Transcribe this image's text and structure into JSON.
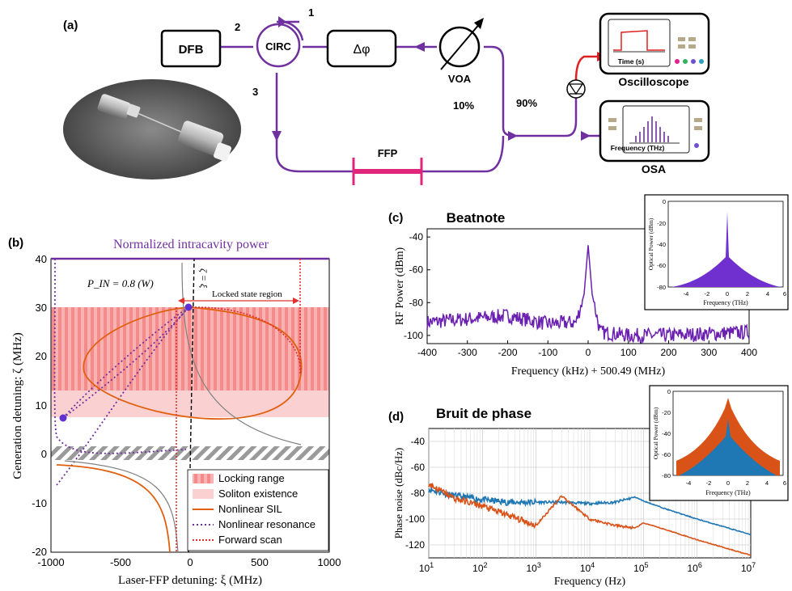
{
  "panel_a": {
    "label": "(a)",
    "blocks": {
      "dfb": "DFB",
      "circ": "CIRC",
      "phase": "Δφ",
      "voa": "VOA",
      "ffp": "FFP",
      "oscilloscope": "Oscilloscope",
      "osa": "OSA"
    },
    "ports": {
      "p1": "1",
      "p2": "2",
      "p3": "3"
    },
    "splits": {
      "low": "10%",
      "high": "90%"
    },
    "scope_axis": "Time (s)",
    "osa_axis": "Frequency (THz)",
    "colors": {
      "loop": "#7030A0",
      "ffp": "#E0267A",
      "rf": "#E02020"
    }
  },
  "panel_b": {
    "label": "(b)",
    "title": "Normalized intracavity power",
    "xlabel": "Laser-FFP detuning: ξ (MHz)",
    "ylabel": "Generation detuning: ζ (MHz)",
    "pin_label": "P_IN = 0.8 (W)",
    "zeta_label": "ζ = ξ",
    "region_label": "Locked state region",
    "xticks": [
      "-1000",
      "-500",
      "0",
      "500",
      "1000"
    ],
    "yticks": [
      "40",
      "30",
      "20",
      "10",
      "0",
      "-10",
      "-20"
    ],
    "legend": [
      "Locking range",
      "Soliton existence",
      "Nonlinear SIL",
      "Nonlinear resonance",
      "Forward scan"
    ]
  },
  "panel_c": {
    "label": "(c)",
    "title": "Beatnote",
    "xlabel": "Frequency (kHz) + 500.49 (MHz)",
    "ylabel": "RF Power (dBm)",
    "xticks": [
      "-400",
      "-300",
      "-200",
      "-100",
      "0",
      "100",
      "200",
      "300",
      "400"
    ],
    "yticks": [
      "-40",
      "-60",
      "-80",
      "-100"
    ],
    "inset": {
      "xlabel": "Frequency (THz)",
      "ylabel": "Optical Power (dBm)",
      "xticks": [
        "-4",
        "-2",
        "0",
        "2",
        "4",
        "6"
      ],
      "yticks": [
        "0",
        "-20",
        "-40",
        "-60",
        "-80"
      ]
    }
  },
  "panel_d": {
    "label": "(d)",
    "title": "Bruit de phase",
    "xlabel": "Frequency (Hz)",
    "ylabel": "Phase noise (dBc/Hz)",
    "xticks": [
      "1",
      "2",
      "3",
      "4",
      "5",
      "6",
      "7"
    ],
    "xbase": "10",
    "yticks": [
      "-40",
      "-60",
      "-80",
      "-100",
      "-120"
    ],
    "inset": {
      "xlabel": "Frequency (THz)",
      "ylabel": "Optical Power (dBm)",
      "xticks": [
        "-4",
        "-2",
        "0",
        "2",
        "4",
        "6"
      ],
      "yticks": [
        "0",
        "-20",
        "-40",
        "-60",
        "-80"
      ]
    },
    "colors": {
      "blue": "#1F77B4",
      "orange": "#D95319"
    }
  },
  "chart_data": [
    {
      "type": "line",
      "title": "Beatnote",
      "xlabel": "Frequency (kHz) + 500.49 (MHz)",
      "ylabel": "RF Power (dBm)",
      "xlim": [
        -400,
        400
      ],
      "ylim": [
        -105,
        -35
      ],
      "x": [
        -400,
        -300,
        -200,
        -100,
        -30,
        -10,
        0,
        10,
        30,
        100,
        200,
        300,
        400
      ],
      "values": [
        -92,
        -90,
        -88,
        -93,
        -92,
        -75,
        -45,
        -75,
        -98,
        -100,
        -100,
        -99,
        -98
      ]
    },
    {
      "type": "line",
      "title": "Bruit de phase",
      "xlabel": "Frequency (Hz)",
      "ylabel": "Phase noise (dBc/Hz)",
      "xscale": "log",
      "xlim": [
        10,
        10000000
      ],
      "ylim": [
        -130,
        -30
      ],
      "x": [
        10,
        30,
        100,
        300,
        1000,
        3000,
        10000,
        30000,
        70000,
        100000,
        300000,
        1000000,
        10000000
      ],
      "series": [
        {
          "values": [
            -77,
            -82,
            -85,
            -87,
            -87,
            -87,
            -88,
            -87,
            -83,
            -86,
            -93,
            -100,
            -112
          ]
        },
        {
          "values": [
            -73,
            -84,
            -90,
            -97,
            -105,
            -82,
            -100,
            -105,
            -107,
            -103,
            -109,
            -116,
            -128
          ]
        }
      ]
    }
  ]
}
